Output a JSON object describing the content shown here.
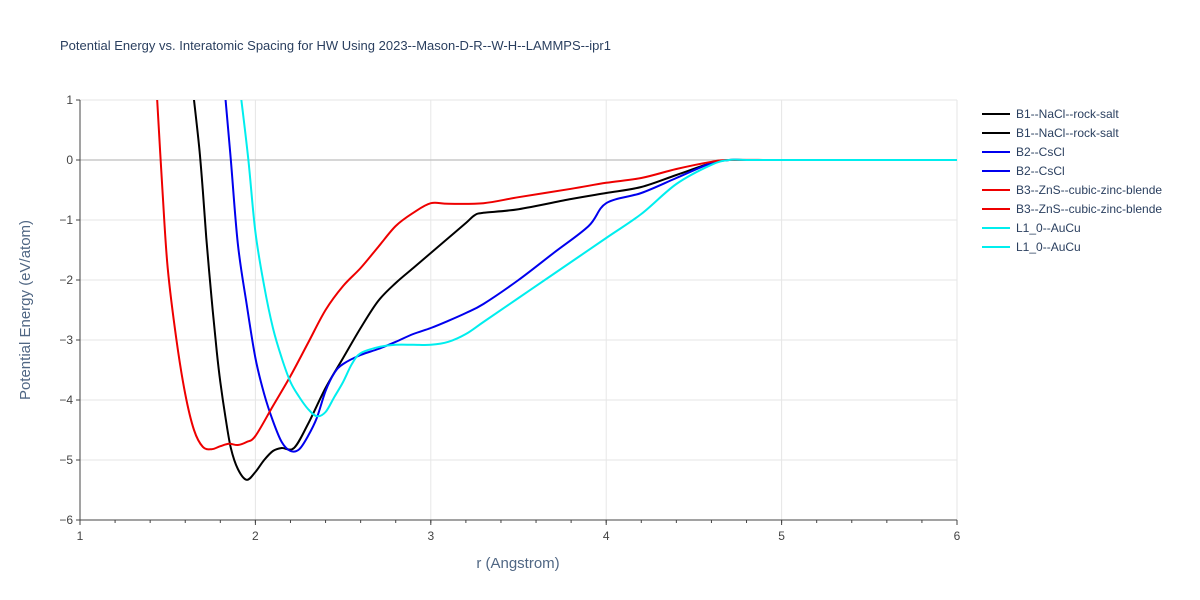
{
  "chart_data": {
    "type": "line",
    "title": "Potential Energy vs. Interatomic Spacing for HW Using 2023--Mason-D-R--W-H--LAMMPS--ipr1",
    "xlabel": "r (Angstrom)",
    "ylabel": "Potential Energy (eV/atom)",
    "xlim": [
      1,
      6
    ],
    "ylim": [
      -6,
      1
    ],
    "xticks": [
      "1",
      "2",
      "3",
      "4",
      "5",
      "6"
    ],
    "yticks": [
      "1",
      "0",
      "−1",
      "−2",
      "−3",
      "−4",
      "−5",
      "−6"
    ],
    "grid": true,
    "legend_position": "right",
    "series": [
      {
        "name": "B1--NaCl--rock-salt",
        "color": "#000000",
        "points": [
          [
            1.65,
            1.0
          ],
          [
            1.68,
            0.2
          ],
          [
            1.7,
            -0.5
          ],
          [
            1.72,
            -1.3
          ],
          [
            1.75,
            -2.3
          ],
          [
            1.78,
            -3.2
          ],
          [
            1.8,
            -3.7
          ],
          [
            1.83,
            -4.3
          ],
          [
            1.86,
            -4.8
          ],
          [
            1.9,
            -5.15
          ],
          [
            1.95,
            -5.33
          ],
          [
            2.0,
            -5.2
          ],
          [
            2.05,
            -5.0
          ],
          [
            2.1,
            -4.85
          ],
          [
            2.15,
            -4.8
          ],
          [
            2.22,
            -4.8
          ],
          [
            2.3,
            -4.4
          ],
          [
            2.4,
            -3.8
          ],
          [
            2.5,
            -3.3
          ],
          [
            2.6,
            -2.8
          ],
          [
            2.7,
            -2.35
          ],
          [
            2.8,
            -2.05
          ],
          [
            2.9,
            -1.8
          ],
          [
            3.0,
            -1.55
          ],
          [
            3.1,
            -1.3
          ],
          [
            3.2,
            -1.05
          ],
          [
            3.25,
            -0.92
          ],
          [
            3.3,
            -0.88
          ],
          [
            3.5,
            -0.82
          ],
          [
            3.8,
            -0.65
          ],
          [
            4.0,
            -0.55
          ],
          [
            4.2,
            -0.45
          ],
          [
            4.4,
            -0.25
          ],
          [
            4.6,
            -0.05
          ],
          [
            4.7,
            0.0
          ],
          [
            4.8,
            0.0
          ],
          [
            5.0,
            0.0
          ],
          [
            5.5,
            0.0
          ],
          [
            6.0,
            0.0
          ]
        ]
      },
      {
        "name": "B1--NaCl--rock-salt",
        "color": "#000000",
        "points": []
      },
      {
        "name": "B2--CsCl",
        "color": "#0000ee",
        "points": [
          [
            1.83,
            1.0
          ],
          [
            1.86,
            0.0
          ],
          [
            1.9,
            -1.4
          ],
          [
            1.95,
            -2.4
          ],
          [
            2.0,
            -3.3
          ],
          [
            2.05,
            -3.9
          ],
          [
            2.1,
            -4.35
          ],
          [
            2.15,
            -4.7
          ],
          [
            2.2,
            -4.85
          ],
          [
            2.25,
            -4.82
          ],
          [
            2.3,
            -4.6
          ],
          [
            2.35,
            -4.3
          ],
          [
            2.4,
            -3.85
          ],
          [
            2.45,
            -3.55
          ],
          [
            2.5,
            -3.4
          ],
          [
            2.6,
            -3.25
          ],
          [
            2.7,
            -3.15
          ],
          [
            2.8,
            -3.03
          ],
          [
            2.9,
            -2.9
          ],
          [
            3.0,
            -2.8
          ],
          [
            3.1,
            -2.68
          ],
          [
            3.2,
            -2.55
          ],
          [
            3.3,
            -2.4
          ],
          [
            3.5,
            -2.0
          ],
          [
            3.7,
            -1.55
          ],
          [
            3.9,
            -1.1
          ],
          [
            4.0,
            -0.72
          ],
          [
            4.2,
            -0.55
          ],
          [
            4.4,
            -0.3
          ],
          [
            4.6,
            -0.05
          ],
          [
            4.7,
            0.0
          ],
          [
            4.8,
            0.0
          ],
          [
            5.0,
            0.0
          ],
          [
            5.5,
            0.0
          ],
          [
            6.0,
            0.0
          ]
        ]
      },
      {
        "name": "B2--CsCl",
        "color": "#0000ee",
        "points": []
      },
      {
        "name": "B3--ZnS--cubic-zinc-blende",
        "color": "#ee0000",
        "points": [
          [
            1.44,
            1.0
          ],
          [
            1.47,
            -0.5
          ],
          [
            1.5,
            -1.8
          ],
          [
            1.55,
            -3.0
          ],
          [
            1.6,
            -3.9
          ],
          [
            1.65,
            -4.5
          ],
          [
            1.7,
            -4.78
          ],
          [
            1.75,
            -4.82
          ],
          [
            1.8,
            -4.77
          ],
          [
            1.85,
            -4.73
          ],
          [
            1.9,
            -4.75
          ],
          [
            1.95,
            -4.7
          ],
          [
            2.0,
            -4.6
          ],
          [
            2.1,
            -4.1
          ],
          [
            2.2,
            -3.6
          ],
          [
            2.3,
            -3.05
          ],
          [
            2.4,
            -2.5
          ],
          [
            2.5,
            -2.1
          ],
          [
            2.6,
            -1.8
          ],
          [
            2.7,
            -1.45
          ],
          [
            2.8,
            -1.1
          ],
          [
            2.9,
            -0.88
          ],
          [
            3.0,
            -0.72
          ],
          [
            3.1,
            -0.73
          ],
          [
            3.3,
            -0.72
          ],
          [
            3.5,
            -0.62
          ],
          [
            3.8,
            -0.48
          ],
          [
            4.0,
            -0.38
          ],
          [
            4.2,
            -0.3
          ],
          [
            4.4,
            -0.15
          ],
          [
            4.6,
            -0.03
          ],
          [
            4.7,
            0.0
          ],
          [
            5.0,
            0.0
          ],
          [
            5.5,
            0.0
          ],
          [
            6.0,
            0.0
          ]
        ]
      },
      {
        "name": "B3--ZnS--cubic-zinc-blende",
        "color": "#ee0000",
        "points": []
      },
      {
        "name": "L1_0--AuCu",
        "color": "#00eeee",
        "points": [
          [
            1.92,
            1.0
          ],
          [
            1.96,
            0.0
          ],
          [
            2.0,
            -1.2
          ],
          [
            2.05,
            -2.1
          ],
          [
            2.1,
            -2.8
          ],
          [
            2.15,
            -3.3
          ],
          [
            2.2,
            -3.7
          ],
          [
            2.25,
            -3.95
          ],
          [
            2.3,
            -4.15
          ],
          [
            2.35,
            -4.27
          ],
          [
            2.4,
            -4.2
          ],
          [
            2.45,
            -3.95
          ],
          [
            2.5,
            -3.7
          ],
          [
            2.55,
            -3.4
          ],
          [
            2.6,
            -3.22
          ],
          [
            2.7,
            -3.12
          ],
          [
            2.8,
            -3.08
          ],
          [
            2.9,
            -3.08
          ],
          [
            3.0,
            -3.08
          ],
          [
            3.1,
            -3.03
          ],
          [
            3.2,
            -2.9
          ],
          [
            3.3,
            -2.7
          ],
          [
            3.5,
            -2.3
          ],
          [
            3.7,
            -1.9
          ],
          [
            4.0,
            -1.3
          ],
          [
            4.2,
            -0.9
          ],
          [
            4.4,
            -0.4
          ],
          [
            4.6,
            -0.08
          ],
          [
            4.7,
            0.0
          ],
          [
            4.8,
            0.0
          ],
          [
            5.0,
            0.0
          ],
          [
            5.5,
            0.0
          ],
          [
            6.0,
            0.0
          ]
        ]
      },
      {
        "name": "L1_0--AuCu",
        "color": "#00eeee",
        "points": []
      }
    ]
  }
}
